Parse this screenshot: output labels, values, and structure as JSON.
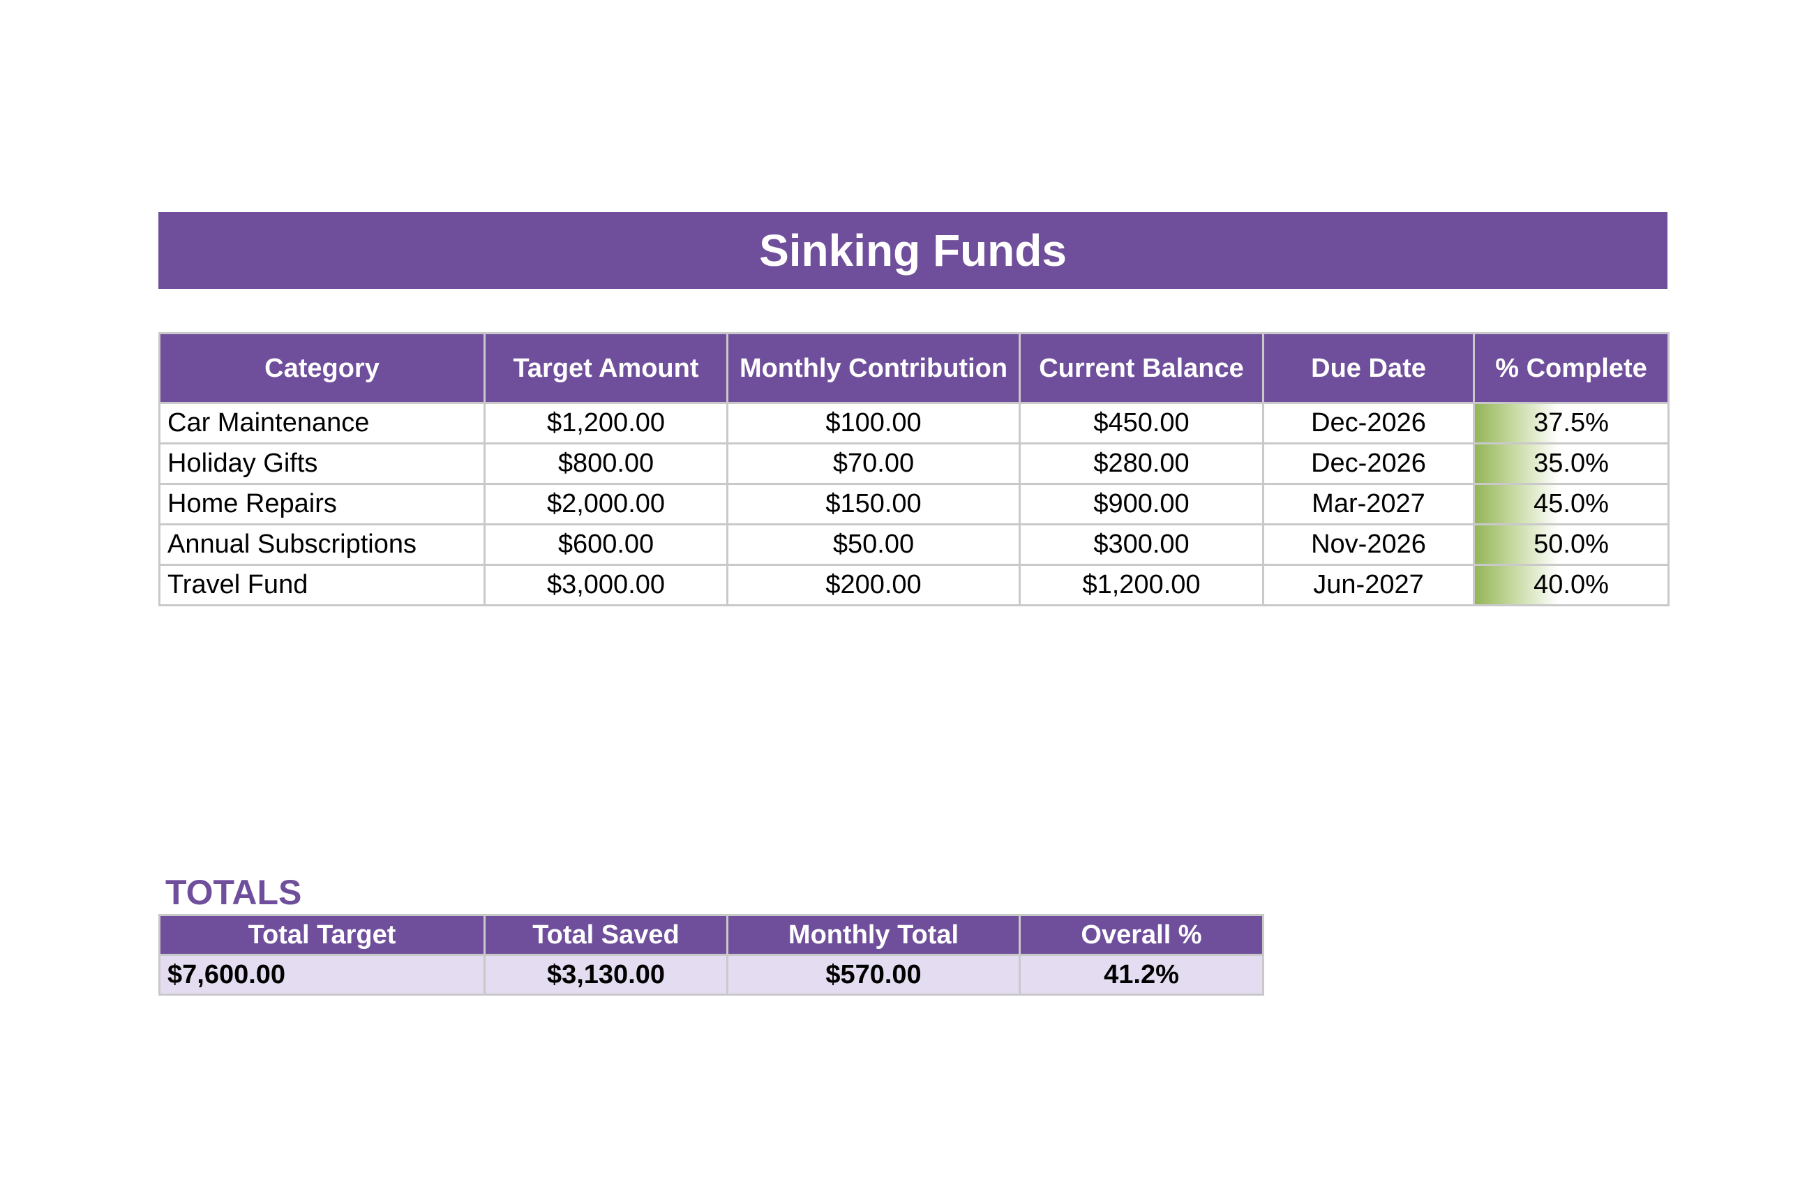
{
  "header": {
    "title": "Sinking Funds"
  },
  "table": {
    "columns": [
      "Category",
      "Target Amount",
      "Monthly Contribution",
      "Current Balance",
      "Due Date",
      "% Complete"
    ],
    "rows": [
      [
        "Car Maintenance",
        "$1,200.00",
        "$100.00",
        "$450.00",
        "Dec-2026",
        "37.5%"
      ],
      [
        "Holiday Gifts",
        "$800.00",
        "$70.00",
        "$280.00",
        "Dec-2026",
        "35.0%"
      ],
      [
        "Home Repairs",
        "$2,000.00",
        "$150.00",
        "$900.00",
        "Mar-2027",
        "45.0%"
      ],
      [
        "Annual Subscriptions",
        "$600.00",
        "$50.00",
        "$300.00",
        "Nov-2026",
        "50.0%"
      ],
      [
        "Travel Fund",
        "$3,000.00",
        "$200.00",
        "$1,200.00",
        "Jun-2027",
        "40.0%"
      ]
    ]
  },
  "totals": {
    "title": "TOTALS",
    "columns": [
      "Total Target",
      "Total Saved",
      "Monthly Total",
      "Overall %"
    ],
    "values": [
      "$7,600.00",
      "$3,130.00",
      "$570.00",
      "41.2%"
    ]
  }
}
